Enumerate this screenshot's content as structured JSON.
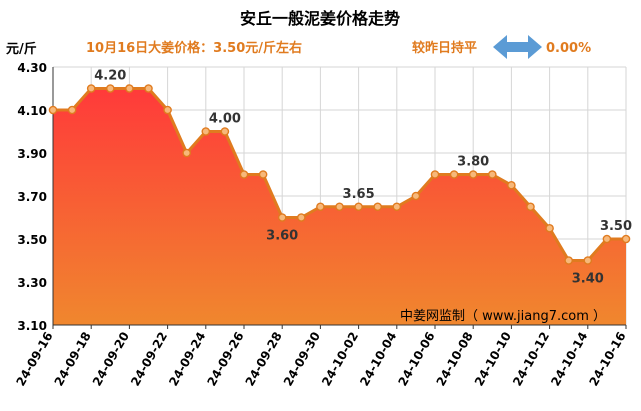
{
  "chart_data": {
    "type": "area",
    "title": "安丘一般泥姜价格走势",
    "ylabel": "元/斤",
    "xlabel": "",
    "ylim": [
      3.1,
      4.3
    ],
    "yticks": [
      "4.30",
      "4.10",
      "3.90",
      "3.70",
      "3.50",
      "3.30",
      "3.10"
    ],
    "grid": true,
    "announcement": "10月16日大姜价格：3.50元/斤左右",
    "compare_label": "较昨日持平",
    "compare_value": "0.00%",
    "compare_icon": "double-arrow-icon",
    "watermark": "中姜网监制（ www.jiang7.com ）",
    "x_tick_labels": [
      "24-09-16",
      "24-09-18",
      "24-09-20",
      "24-09-22",
      "24-09-24",
      "24-09-26",
      "24-09-28",
      "24-09-30",
      "24-10-02",
      "24-10-04",
      "24-10-06",
      "24-10-08",
      "24-10-10",
      "24-10-12",
      "24-10-14",
      "24-10-16"
    ],
    "x": [
      "24-09-16",
      "24-09-17",
      "24-09-18",
      "24-09-19",
      "24-09-20",
      "24-09-21",
      "24-09-22",
      "24-09-23",
      "24-09-24",
      "24-09-25",
      "24-09-26",
      "24-09-27",
      "24-09-28",
      "24-09-29",
      "24-09-30",
      "24-10-01",
      "24-10-02",
      "24-10-03",
      "24-10-04",
      "24-10-05",
      "24-10-06",
      "24-10-07",
      "24-10-08",
      "24-10-09",
      "24-10-10",
      "24-10-11",
      "24-10-12",
      "24-10-13",
      "24-10-14",
      "24-10-15",
      "24-10-16"
    ],
    "series": [
      {
        "values": [
          4.1,
          4.1,
          4.2,
          4.2,
          4.2,
          4.2,
          4.1,
          3.9,
          4.0,
          4.0,
          3.8,
          3.8,
          3.6,
          3.6,
          3.65,
          3.65,
          3.65,
          3.65,
          3.65,
          3.7,
          3.8,
          3.8,
          3.8,
          3.8,
          3.75,
          3.65,
          3.55,
          3.4,
          3.4,
          3.5,
          3.5
        ]
      }
    ],
    "data_labels": [
      {
        "index": 3,
        "text": "4.20"
      },
      {
        "index": 9,
        "text": "4.00"
      },
      {
        "index": 12,
        "text": "3.60"
      },
      {
        "index": 16,
        "text": "3.65"
      },
      {
        "index": 22,
        "text": "3.80"
      },
      {
        "index": 28,
        "text": "3.40"
      },
      {
        "index": 30,
        "text": "3.50"
      }
    ],
    "colors": {
      "line": "#e07b1f",
      "marker_fill": "#f7b87a",
      "fill_top": "#ff3a3a",
      "fill_bottom": "#f0872e",
      "title": "#000000",
      "announcement": "#e07b1f",
      "arrow": "#5b9bd5",
      "grid": "#d6d6d6"
    }
  }
}
